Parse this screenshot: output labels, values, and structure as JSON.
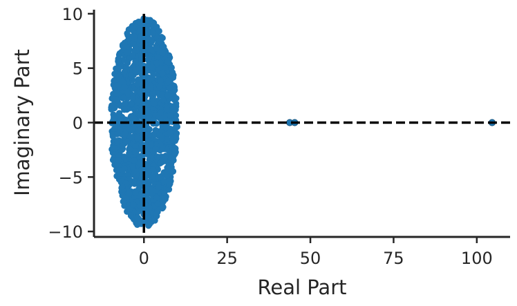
{
  "chart_data": {
    "type": "scatter",
    "title": "",
    "xlabel": "Real Part",
    "ylabel": "Imaginary Part",
    "xlim": [
      -15,
      110
    ],
    "ylim": [
      -10.5,
      10.5
    ],
    "xticks": [
      0,
      25,
      50,
      75,
      100
    ],
    "xtick_labels": [
      "0",
      "25",
      "50",
      "75",
      "100"
    ],
    "yticks": [
      -10,
      -5,
      0,
      5,
      10
    ],
    "ytick_labels": [
      "−10",
      "−5",
      "0",
      "5",
      "10"
    ],
    "grid": false,
    "legend": "none",
    "reference_lines": [
      {
        "orientation": "vertical",
        "at": 0,
        "style": "dashed",
        "color": "#000000"
      },
      {
        "orientation": "horizontal",
        "at": 0,
        "style": "dashed",
        "color": "#000000"
      }
    ],
    "cluster": {
      "center_real": 0,
      "center_imag": 0,
      "radius_real": 10,
      "radius_imag": 9.6
    },
    "outliers": [
      {
        "x": 43.8,
        "y": 0
      },
      {
        "x": 45.3,
        "y": 0
      },
      {
        "x": 104.6,
        "y": 0
      }
    ],
    "point_color": "#1f77b4"
  }
}
